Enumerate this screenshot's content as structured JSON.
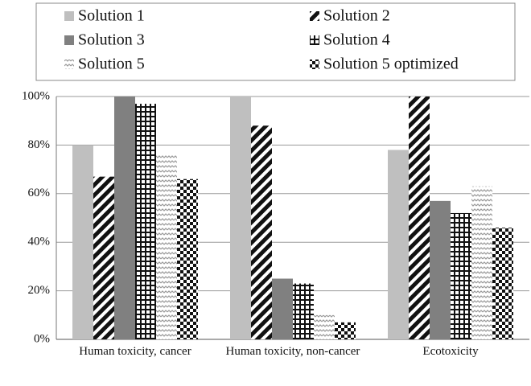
{
  "chart_data": {
    "type": "bar",
    "categories": [
      "Human toxicity, cancer",
      "Human toxicity, non-cancer",
      "Ecotoxicity"
    ],
    "series": [
      {
        "name": "Solution 1",
        "color": "#bfbfbf",
        "pattern": "solid",
        "values": [
          80,
          100,
          78
        ]
      },
      {
        "name": "Solution 2",
        "color": "#111111",
        "pattern": "diagonal",
        "values": [
          67,
          88,
          100
        ]
      },
      {
        "name": "Solution 3",
        "color": "#808080",
        "pattern": "solid",
        "values": [
          100,
          25,
          57
        ]
      },
      {
        "name": "Solution 4",
        "color": "#111111",
        "pattern": "grid",
        "values": [
          97,
          23,
          52
        ]
      },
      {
        "name": "Solution 5",
        "color": "#9a9a9a",
        "pattern": "wave",
        "values": [
          76,
          10,
          63
        ]
      },
      {
        "name": "Solution 5 optimized",
        "color": "#111111",
        "pattern": "checker",
        "values": [
          66,
          7,
          46
        ]
      }
    ],
    "ylim": [
      0,
      100
    ],
    "yticks": [
      {
        "value": 0,
        "label": "0%"
      },
      {
        "value": 20,
        "label": "20%"
      },
      {
        "value": 40,
        "label": "40%"
      },
      {
        "value": 60,
        "label": "60%"
      },
      {
        "value": 80,
        "label": "80%"
      },
      {
        "value": 100,
        "label": "100%"
      }
    ],
    "grid": true,
    "legend": "top"
  }
}
